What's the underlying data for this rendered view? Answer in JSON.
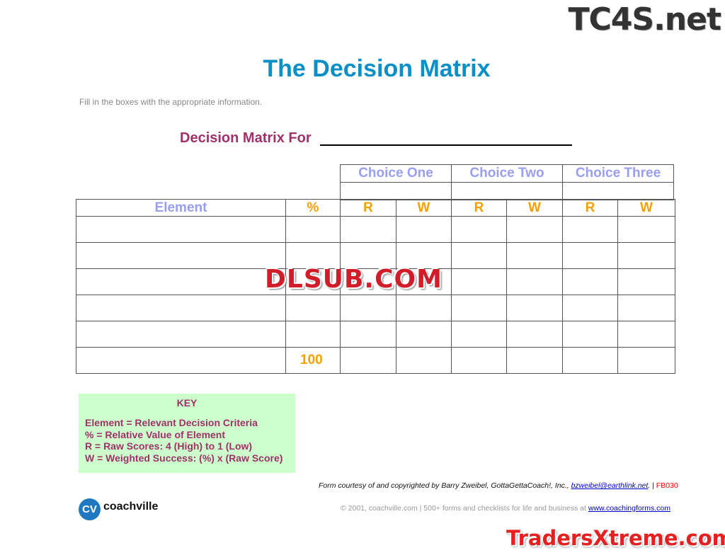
{
  "watermarks": {
    "top": "TC4S.net",
    "middle": "DLSUB.COM",
    "bottom": "TradersXtreme.com"
  },
  "title": "The Decision Matrix",
  "instructions": "Fill in the boxes with the appropriate information.",
  "decision_for_label": "Decision Matrix For",
  "choices": [
    "Choice One",
    "Choice Two",
    "Choice Three"
  ],
  "columns": {
    "element": "Element",
    "percent": "%",
    "r": "R",
    "w": "W"
  },
  "total_percent": "100",
  "key": {
    "title": "KEY",
    "lines": [
      "Element = Relevant Decision Criteria",
      "% = Relative Value of Element",
      "R = Raw Scores: 4 (High) to 1 (Low)",
      "W = Weighted Success: (%) x (Raw Score)"
    ]
  },
  "credit": {
    "text": "Form courtesy of and copyrighted by Barry Zweibel, GottaGettaCoach!, Inc., ",
    "email": "bzweibel@earthlink.net",
    "sep": ". | ",
    "code": "FB030"
  },
  "copyright": {
    "text": "© 2001, coachville.com | 500+ forms and checklists for life and business at ",
    "link": "www.coachingforms.com"
  },
  "logo": {
    "mark": "CV",
    "name": "coachville"
  },
  "colors": {
    "title": "#0b8fc7",
    "accent": "#a0306a",
    "choice": "#9a9ef0",
    "score": "#f5a000",
    "key_bg": "#ccffcc"
  }
}
